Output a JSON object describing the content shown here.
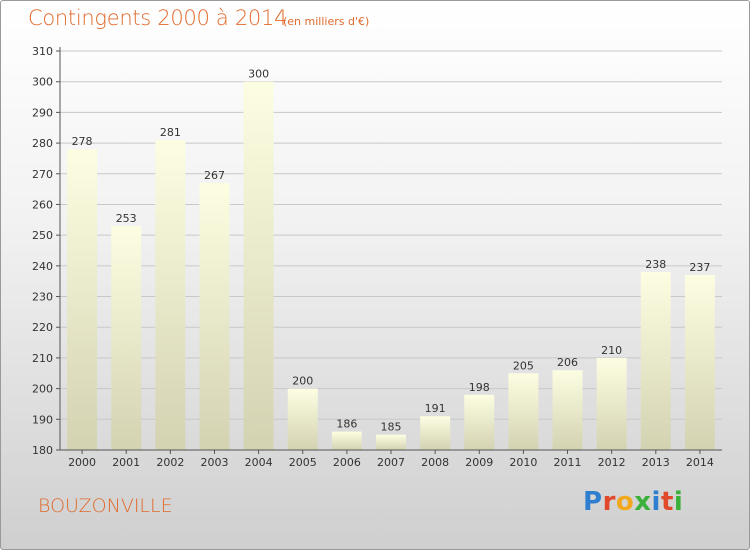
{
  "header": {
    "title": "Contingents 2000 à 2014",
    "subtitle": "(en milliers d'€)"
  },
  "footer": {
    "place": "BOUZONVILLE",
    "logo_text": "Proxiti",
    "logo_colors": [
      "#2f7fd0",
      "#e04a2a",
      "#f2a81d",
      "#3bb13b",
      "#2f7fd0",
      "#e04a2a",
      "#3bb13b"
    ]
  },
  "chart_data": {
    "type": "bar",
    "title": "Contingents 2000 à 2014",
    "subtitle": "(en milliers d'€)",
    "xlabel": "",
    "ylabel": "",
    "categories": [
      "2000",
      "2001",
      "2002",
      "2003",
      "2004",
      "2005",
      "2006",
      "2007",
      "2008",
      "2009",
      "2010",
      "2011",
      "2012",
      "2013",
      "2014"
    ],
    "values": [
      278,
      253,
      281,
      267,
      300,
      200,
      186,
      185,
      191,
      198,
      205,
      206,
      210,
      238,
      237
    ],
    "ylim": [
      180,
      310
    ],
    "yticks": [
      180,
      190,
      200,
      210,
      220,
      230,
      240,
      250,
      260,
      270,
      280,
      290,
      300,
      310
    ],
    "grid": true,
    "legend": "none",
    "bar_color": "#f5f5cf"
  }
}
